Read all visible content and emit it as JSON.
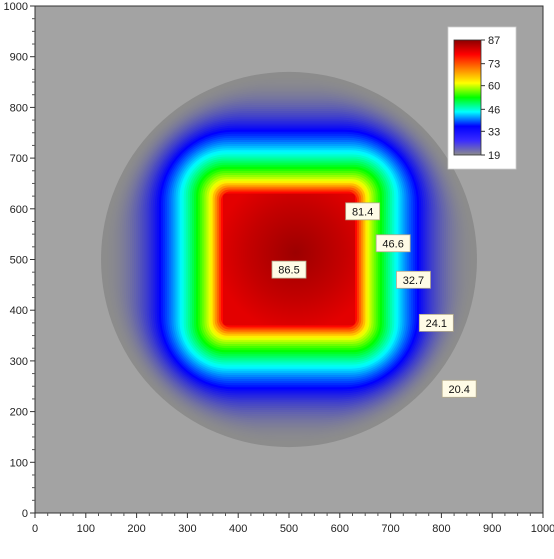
{
  "chart_data": {
    "type": "heatmap",
    "title": "",
    "xlabel": "",
    "ylabel": "",
    "xlim": [
      0,
      1000
    ],
    "ylim": [
      0,
      1000
    ],
    "x_ticks": [
      0,
      100,
      200,
      300,
      400,
      500,
      600,
      700,
      800,
      900,
      1000
    ],
    "y_ticks": [
      0,
      100,
      200,
      300,
      400,
      500,
      600,
      700,
      800,
      900,
      1000
    ],
    "background_color": "#a3a3a3",
    "value_range": [
      19,
      87
    ],
    "hot_region": {
      "x": [
        370,
        630
      ],
      "y": [
        370,
        630
      ],
      "value": 86.5
    },
    "colormap": [
      "#8c8c8c",
      "#0000ff",
      "#00ffff",
      "#00ff00",
      "#ffff00",
      "#ff0000",
      "#8b0000"
    ],
    "colorbar": {
      "ticks": [
        "87",
        "73",
        "60",
        "46",
        "33",
        "19"
      ],
      "tick_values": [
        87,
        73,
        60,
        46,
        33,
        19
      ],
      "placement": "top-right"
    },
    "contour_labels": [
      {
        "text": "86.5",
        "x": 500,
        "y": 480
      },
      {
        "text": "81.4",
        "x": 645,
        "y": 595
      },
      {
        "text": "46.6",
        "x": 705,
        "y": 532
      },
      {
        "text": "32.7",
        "x": 745,
        "y": 460
      },
      {
        "text": "24.1",
        "x": 790,
        "y": 375
      },
      {
        "text": "20.4",
        "x": 835,
        "y": 245
      }
    ]
  }
}
